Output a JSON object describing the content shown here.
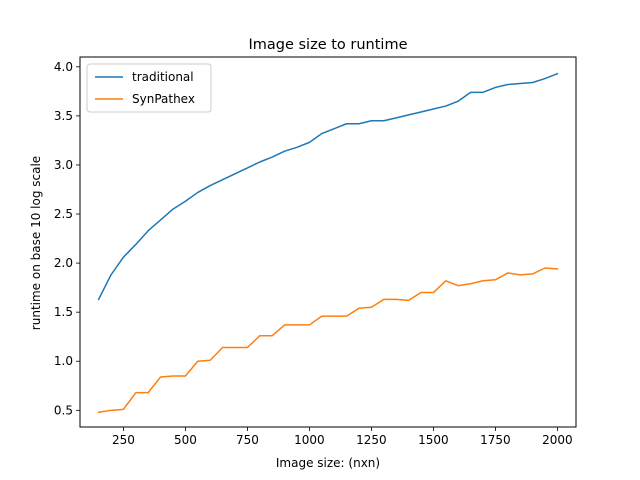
{
  "chart_data": {
    "type": "line",
    "title": "Image size to runtime",
    "xlabel": "Image size: (nxn)",
    "ylabel": "runtime on base 10 log scale",
    "xlim": [
      75,
      2075
    ],
    "ylim": [
      0.33,
      4.1
    ],
    "xticks": [
      250,
      500,
      750,
      1000,
      1250,
      1500,
      1750,
      2000
    ],
    "yticks": [
      0.5,
      1.0,
      1.5,
      2.0,
      2.5,
      3.0,
      3.5,
      4.0
    ],
    "xtick_labels": [
      "250",
      "500",
      "750",
      "1000",
      "1250",
      "1500",
      "1750",
      "2000"
    ],
    "ytick_labels": [
      "0.5",
      "1.0",
      "1.5",
      "2.0",
      "2.5",
      "3.0",
      "3.5",
      "4.0"
    ],
    "grid": false,
    "legend_position": "top-left",
    "x": [
      150,
      200,
      250,
      300,
      350,
      400,
      450,
      500,
      550,
      600,
      650,
      700,
      750,
      800,
      850,
      900,
      950,
      1000,
      1050,
      1100,
      1150,
      1200,
      1250,
      1300,
      1350,
      1400,
      1450,
      1500,
      1550,
      1600,
      1650,
      1700,
      1750,
      1800,
      1850,
      1900,
      1950,
      2000
    ],
    "series": [
      {
        "name": "traditional",
        "color": "#1f77b4",
        "values": [
          1.63,
          1.88,
          2.06,
          2.19,
          2.33,
          2.44,
          2.55,
          2.63,
          2.72,
          2.79,
          2.85,
          2.91,
          2.97,
          3.03,
          3.08,
          3.14,
          3.18,
          3.23,
          3.32,
          3.37,
          3.42,
          3.42,
          3.45,
          3.45,
          3.48,
          3.51,
          3.54,
          3.57,
          3.6,
          3.65,
          3.74,
          3.74,
          3.79,
          3.82,
          3.83,
          3.84,
          3.88,
          3.93
        ]
      },
      {
        "name": "SynPathex",
        "color": "#ff7f0e",
        "values": [
          0.48,
          0.5,
          0.51,
          0.68,
          0.68,
          0.84,
          0.85,
          0.85,
          1.0,
          1.01,
          1.14,
          1.14,
          1.14,
          1.26,
          1.26,
          1.37,
          1.37,
          1.37,
          1.46,
          1.46,
          1.46,
          1.54,
          1.55,
          1.63,
          1.63,
          1.62,
          1.7,
          1.7,
          1.82,
          1.77,
          1.79,
          1.82,
          1.83,
          1.9,
          1.88,
          1.89,
          1.95,
          1.94
        ]
      }
    ]
  }
}
